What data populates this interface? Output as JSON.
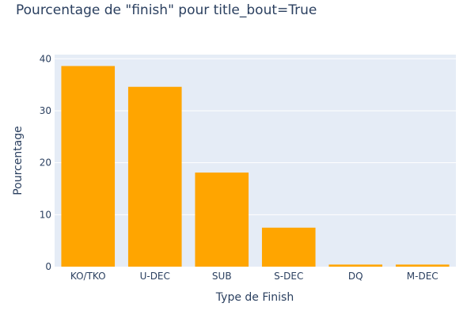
{
  "chart_data": {
    "type": "bar",
    "title": "Pourcentage de \"finish\" pour title_bout=True",
    "xlabel": "Type de Finish",
    "ylabel": "Pourcentage",
    "categories": [
      "KO/TKO",
      "U-DEC",
      "SUB",
      "S-DEC",
      "DQ",
      "M-DEC"
    ],
    "values": [
      38.6,
      34.6,
      18.1,
      7.5,
      0.4,
      0.4
    ],
    "ylim": [
      0,
      40.8
    ],
    "yticks": [
      0,
      10,
      20,
      30,
      40
    ],
    "grid": true,
    "colors": {
      "bar": "#FFA500",
      "plot_bg": "#E5ECF6",
      "grid": "#FFFFFF",
      "text": "#2A3F5F"
    }
  }
}
